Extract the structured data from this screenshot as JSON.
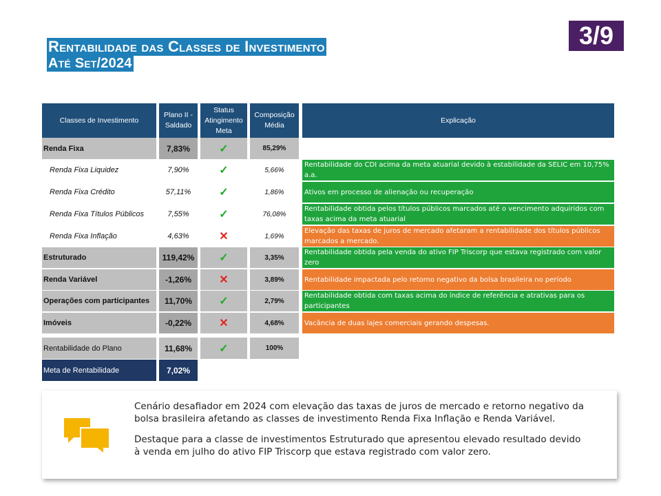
{
  "title": {
    "line1_parts": [
      {
        "cap": "R",
        "rest": "entabilidade das "
      },
      {
        "cap": "C",
        "rest": "lasses de "
      },
      {
        "cap": "I",
        "rest": "nvestimento"
      }
    ],
    "line2_parts": [
      {
        "cap": "A",
        "rest": "té "
      },
      {
        "cap": "S",
        "rest": "et/2024"
      }
    ]
  },
  "page_badge": "3/9",
  "table": {
    "headers": {
      "classes": "Classes de Investimento",
      "plano": "Plano II - Saldado",
      "status": "Status Atingimento Meta",
      "composicao": "Composição Média",
      "explicacao": "Explicação"
    },
    "rows": [
      {
        "name": "Renda Fixa",
        "value": "7,83%",
        "status": "check",
        "comp": "85,29%",
        "type": "group",
        "explanation": "",
        "exp_color": ""
      },
      {
        "name": "Renda Fixa Liquidez",
        "value": "7,90%",
        "status": "check",
        "comp": "5,66%",
        "type": "sub",
        "explanation": "Rentabilidade do CDI acima da meta atuarial devido à estabilidade da SELIC em 10,75% a.a.",
        "exp_color": "green"
      },
      {
        "name": "Renda Fixa Crédito",
        "value": "57,11%",
        "status": "check",
        "comp": "1,86%",
        "type": "sub",
        "explanation": "Ativos em processo de alienação ou recuperação",
        "exp_color": "green"
      },
      {
        "name": "Renda Fixa Títulos Públicos",
        "value": "7,55%",
        "status": "check",
        "comp": "76,08%",
        "type": "sub",
        "explanation": "Rentabilidade obtida pelos títulos públicos marcados até o vencimento adquiridos com taxas acima da meta atuarial",
        "exp_color": "green"
      },
      {
        "name": "Renda Fixa Inflação",
        "value": "4,63%",
        "status": "cross",
        "comp": "1,69%",
        "type": "sub",
        "explanation": "Elevação das taxas de juros de mercado afetaram a rentabilidade dos títulos públicos marcados a mercado.",
        "exp_color": "orange"
      },
      {
        "name": "Estruturado",
        "value": "119,42%",
        "status": "check",
        "comp": "3,35%",
        "type": "group",
        "explanation": "Rentabilidade obtida pela venda do ativo FIP Triscorp que estava registrado com valor zero",
        "exp_color": "green"
      },
      {
        "name": "Renda Variável",
        "value": "-1,26%",
        "status": "cross",
        "comp": "3,89%",
        "type": "group",
        "explanation": "Rentabilidade impactada pelo retorno negativo da bolsa brasileira no período",
        "exp_color": "orange"
      },
      {
        "name": "Operações com participantes",
        "value": "11,70%",
        "status": "check",
        "comp": "2,79%",
        "type": "group",
        "explanation": "Rentabilidade obtida com taxas acima do índice de referência e atrativas para os participantes",
        "exp_color": "green"
      },
      {
        "name": "Imóveis",
        "value": "-0,22%",
        "status": "cross",
        "comp": "4,68%",
        "type": "group",
        "explanation": "Vacância de duas lajes comerciais gerando despesas.",
        "exp_color": "orange"
      }
    ],
    "total": {
      "name": "Rentabilidade do Plano",
      "value": "11,68%",
      "status": "check",
      "comp": "100%"
    },
    "meta": {
      "name": "Meta de Rentabilidade",
      "value": "7,02%"
    }
  },
  "note": {
    "icon": "speech-bubbles-icon",
    "icon_color": "#f5b400",
    "paragraph1": "Cenário desafiador em 2024 com elevação das taxas de juros de mercado e retorno negativo da bolsa brasileira afetando as classes de investimento Renda Fixa Inflação e Renda Variável.",
    "paragraph2": "Destaque para a classe de investimentos Estruturado que apresentou elevado resultado devido à venda em julho do ativo FIP Triscorp que estava registrado com valor zero."
  },
  "colors": {
    "title_bg": "#1f7fb8",
    "badge_bg": "#4b1f63",
    "header_bg": "#1f4e79",
    "green": "#1fa43c",
    "orange": "#ed7d31",
    "gray": "#bfbfbf",
    "navy": "#1f3864"
  }
}
